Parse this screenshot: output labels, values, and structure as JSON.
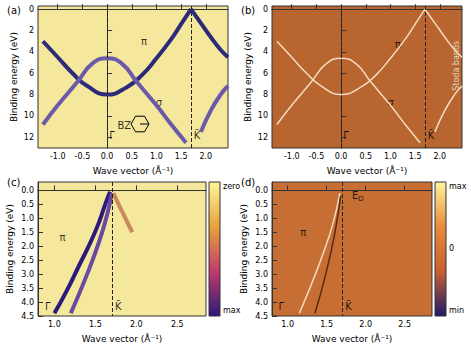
{
  "chart_data": [
    {
      "type": "line",
      "title": "(a)",
      "xlabel": "Wave vector (Å⁻¹)",
      "ylabel": "Binding energy (eV)",
      "xlim": [
        -1.4,
        2.45
      ],
      "ylim": [
        -0.3,
        13
      ],
      "xticks": [
        {
          "value": -1.0,
          "label": "-1.0"
        },
        {
          "value": -0.5,
          "label": "-0.5"
        },
        {
          "value": 0,
          "label": "0.0"
        },
        {
          "value": 0.5,
          "label": "0.5"
        },
        {
          "value": 1.0,
          "label": "1.0"
        },
        {
          "value": 1.5,
          "label": "1.5"
        },
        {
          "value": 2.0,
          "label": "2.0"
        }
      ],
      "yticks": [
        0,
        2,
        4,
        6,
        8,
        10,
        12
      ],
      "vlines": [
        0,
        1.7
      ],
      "series": [
        {
          "color": "#2d2a7a",
          "x": [
            -1.3,
            -1.0,
            -0.7,
            -0.4,
            0,
            0.4,
            0.7,
            1.0,
            1.3,
            1.5,
            1.7
          ],
          "values": [
            3.0,
            4.5,
            6.0,
            7.2,
            8.0,
            7.3,
            6.2,
            4.6,
            2.8,
            1.4,
            0.0
          ]
        },
        {
          "color": "#2d2a7a",
          "x": [
            1.7,
            1.9,
            2.1,
            2.3,
            2.45
          ],
          "values": [
            0.0,
            1.3,
            2.6,
            3.8,
            4.5
          ]
        },
        {
          "color": "#6a5aa8",
          "x": [
            -1.3,
            -1.0,
            -0.6,
            -0.3,
            0,
            0.3,
            0.6,
            1.0,
            1.3,
            1.6
          ],
          "values": [
            10.8,
            9.0,
            6.8,
            5.1,
            4.6,
            5.1,
            6.8,
            9.0,
            10.8,
            12.5
          ]
        },
        {
          "color": "#6a5aa8",
          "x": [
            1.9,
            2.1,
            2.3,
            2.45
          ],
          "values": [
            11.5,
            9.5,
            8.0,
            7.2
          ]
        }
      ],
      "annotations": [
        {
          "text": "π",
          "x": 0.75,
          "y": 3.0
        },
        {
          "text": "σ",
          "x": 1.05,
          "y": 8.7
        },
        {
          "text": "Γ̄",
          "x": 0.1,
          "y": 11.8
        },
        {
          "text": "K̄",
          "x": 1.82,
          "y": 11.8
        },
        {
          "text": "BZ",
          "x": 0.35,
          "y": 10.9
        }
      ]
    },
    {
      "type": "line",
      "title": "(b)",
      "xlabel": "Wave vector (Å⁻¹)",
      "ylabel": "Binding energy (eV)",
      "xlim": [
        -1.4,
        2.45
      ],
      "ylim": [
        -0.3,
        13
      ],
      "xticks": [
        {
          "value": -1.0,
          "label": "-1.0"
        },
        {
          "value": -0.5,
          "label": "-0.5"
        },
        {
          "value": 0,
          "label": "0.0"
        },
        {
          "value": 0.5,
          "label": "0.5"
        },
        {
          "value": 1.0,
          "label": "1.0"
        },
        {
          "value": 1.5,
          "label": "1.5"
        },
        {
          "value": 2.0,
          "label": "2.0"
        }
      ],
      "yticks": [
        0,
        2,
        4,
        6,
        8,
        10,
        12
      ],
      "vlines": [
        0,
        1.7
      ],
      "series": [
        {
          "color": "#f3dcc0",
          "x": [
            -1.3,
            -1.0,
            -0.7,
            -0.4,
            0,
            0.4,
            0.7,
            1.0,
            1.3,
            1.5,
            1.7
          ],
          "values": [
            3.0,
            4.5,
            6.0,
            7.2,
            8.0,
            7.3,
            6.2,
            4.6,
            2.8,
            1.4,
            0.0
          ]
        },
        {
          "color": "#f3dcc0",
          "x": [
            1.7,
            1.9,
            2.1,
            2.3,
            2.45
          ],
          "values": [
            0.0,
            1.3,
            2.6,
            3.8,
            4.5
          ]
        },
        {
          "color": "#f3dcc0",
          "x": [
            -1.3,
            -1.0,
            -0.6,
            -0.3,
            0,
            0.3,
            0.6,
            1.0,
            1.3,
            1.6
          ],
          "values": [
            10.8,
            9.0,
            6.8,
            5.1,
            4.6,
            5.1,
            6.8,
            9.0,
            10.8,
            12.5
          ]
        },
        {
          "color": "#f3dcc0",
          "x": [
            1.9,
            2.1,
            2.3,
            2.45
          ],
          "values": [
            11.5,
            9.5,
            8.0,
            7.2
          ]
        }
      ],
      "annotations": [
        {
          "text": "π",
          "x": 1.15,
          "y": 3.3
        },
        {
          "text": "σ",
          "x": 1.0,
          "y": 8.7
        },
        {
          "text": "Γ̄",
          "x": 0.1,
          "y": 11.8
        },
        {
          "text": "K̄",
          "x": 1.82,
          "y": 11.8
        },
        {
          "text": "Stoda bands",
          "x": 2.33,
          "y": 5.3,
          "orientation": "vertical"
        }
      ]
    },
    {
      "type": "line",
      "title": "(c)",
      "xlabel": "Wave vector (Å⁻¹)",
      "ylabel": "Binding energy (eV)",
      "xlim": [
        0.8,
        2.85
      ],
      "ylim": [
        -0.3,
        4.5
      ],
      "xticks": [
        {
          "value": 1.0,
          "label": "1.0"
        },
        {
          "value": 1.5,
          "label": "1.5"
        },
        {
          "value": 2.0,
          "label": "2.0"
        },
        {
          "value": 2.5,
          "label": "2.5"
        }
      ],
      "yticks": [
        {
          "value": 0,
          "label": "0.0"
        },
        {
          "value": 0.5,
          "label": "0.5"
        },
        {
          "value": 1.0,
          "label": "1.0"
        },
        {
          "value": 1.5,
          "label": "1.5"
        },
        {
          "value": 2.0,
          "label": "2.0"
        },
        {
          "value": 2.5,
          "label": "2.5"
        },
        {
          "value": 3.0,
          "label": "3.0"
        },
        {
          "value": 3.5,
          "label": "3.5"
        },
        {
          "value": 4.0,
          "label": "4.0"
        },
        {
          "value": 4.5,
          "label": "4.5"
        }
      ],
      "vlines": [
        1.7
      ],
      "series": [
        {
          "color": "#2c1a7a",
          "x": [
            1.0,
            1.15,
            1.3,
            1.45,
            1.55,
            1.62,
            1.68
          ],
          "values": [
            4.4,
            3.6,
            2.7,
            1.8,
            1.1,
            0.5,
            0.05
          ]
        },
        {
          "color": "#6a4aa0",
          "x": [
            1.2,
            1.4,
            1.55,
            1.65,
            1.7
          ],
          "values": [
            4.4,
            3.0,
            1.8,
            0.8,
            0.1
          ]
        },
        {
          "color": "#c98a5a",
          "x": [
            1.72,
            1.8,
            1.95
          ],
          "values": [
            0.1,
            0.6,
            1.5
          ]
        }
      ],
      "annotations": [
        {
          "text": "π",
          "x": 1.1,
          "y": 1.7
        },
        {
          "text": "Γ̄",
          "x": 0.92,
          "y": 4.15
        },
        {
          "text": "K̄",
          "x": 1.78,
          "y": 4.15
        }
      ],
      "colorbar": {
        "labels": [
          "zero",
          "max"
        ],
        "colors": [
          "#fff59a",
          "#e7a23a",
          "#c03b6b",
          "#2c1a7a"
        ]
      }
    },
    {
      "type": "line",
      "title": "(d)",
      "xlabel": "Wave vector (Å⁻¹)",
      "ylabel": "Binding energy (eV)",
      "xlim": [
        0.8,
        2.85
      ],
      "ylim": [
        -0.3,
        4.5
      ],
      "xticks": [
        {
          "value": 1.0,
          "label": "1.0"
        },
        {
          "value": 1.5,
          "label": "1.5"
        },
        {
          "value": 2.0,
          "label": "2.0"
        },
        {
          "value": 2.5,
          "label": "2.5"
        }
      ],
      "yticks": [
        {
          "value": 0,
          "label": "0.0"
        },
        {
          "value": 0.5,
          "label": "0.5"
        },
        {
          "value": 1.0,
          "label": "1.0"
        },
        {
          "value": 1.5,
          "label": "1.5"
        },
        {
          "value": 2.0,
          "label": "2.0"
        },
        {
          "value": 2.5,
          "label": "2.5"
        },
        {
          "value": 3.0,
          "label": "3.0"
        },
        {
          "value": 3.5,
          "label": "3.5"
        },
        {
          "value": 4.0,
          "label": "4.0"
        },
        {
          "value": 4.5,
          "label": "4.5"
        }
      ],
      "vlines": [
        1.7
      ],
      "series": [
        {
          "color": "#f3dcc0",
          "x": [
            1.15,
            1.3,
            1.45,
            1.58,
            1.67
          ],
          "values": [
            4.4,
            3.4,
            2.3,
            1.2,
            0.1
          ]
        },
        {
          "color": "#5a2a10",
          "x": [
            1.35,
            1.48,
            1.6,
            1.68
          ],
          "values": [
            4.4,
            3.1,
            1.6,
            0.2
          ]
        }
      ],
      "annotations": [
        {
          "text": "π",
          "x": 1.2,
          "y": 1.5
        },
        {
          "text": "E",
          "subscript": "D",
          "x": 1.9,
          "y": 0.2
        },
        {
          "text": "Γ̄",
          "x": 0.92,
          "y": 4.15
        },
        {
          "text": "K̄",
          "x": 1.78,
          "y": 4.15
        }
      ],
      "colorbar": {
        "labels": [
          "max",
          0,
          "min"
        ],
        "colors": [
          "#fff59a",
          "#e88a3a",
          "#c8602e",
          "#1c1a6a"
        ]
      }
    }
  ]
}
